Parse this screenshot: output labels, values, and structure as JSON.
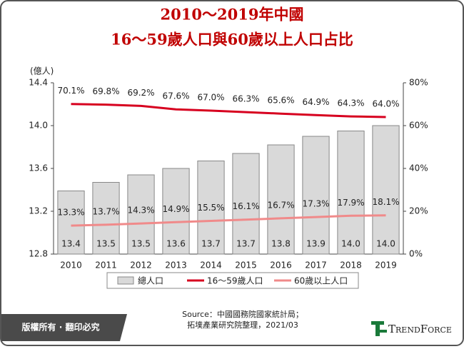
{
  "chart_data": {
    "type": "bar",
    "title": "2010～2019年中國",
    "subtitle": "16～59歲人口與60歲以上人口占比",
    "ylabel": "(億人)",
    "categories": [
      "2010",
      "2011",
      "2012",
      "2013",
      "2014",
      "2015",
      "2016",
      "2017",
      "2018",
      "2019"
    ],
    "ylim": [
      12.8,
      14.4
    ],
    "yticks": [
      12.8,
      13.2,
      13.6,
      {
        "value": 14,
        "label": "14.0"
      },
      14.4
    ],
    "y2lim": [
      0,
      80
    ],
    "y2ticks": [
      {
        "value": 0,
        "label": "0%"
      },
      {
        "value": 20,
        "label": "20%"
      },
      {
        "value": 40,
        "label": "40%"
      },
      {
        "value": 60,
        "label": "60%"
      },
      {
        "value": 80,
        "label": "80%"
      }
    ],
    "series": [
      {
        "name": "總人口",
        "type": "bar",
        "color": "#d9d9d9",
        "values": [
          13.39,
          13.47,
          13.54,
          13.6,
          13.67,
          13.74,
          13.82,
          13.9,
          13.95,
          14.0
        ],
        "value_labels": [
          "13.4",
          "13.5",
          "13.5",
          "13.6",
          "13.7",
          "13.7",
          "13.8",
          "13.9",
          "14.0",
          "14.0"
        ]
      },
      {
        "name": "16～59歲人口",
        "type": "line",
        "axis": "y2",
        "color": "#d7001f",
        "values": [
          70.1,
          69.8,
          69.2,
          67.6,
          67.0,
          66.3,
          65.6,
          64.9,
          64.3,
          64.0
        ],
        "value_labels": [
          "70.1%",
          "69.8%",
          "69.2%",
          "67.6%",
          "67.0%",
          "66.3%",
          "65.6%",
          "64.9%",
          "64.3%",
          "64.0%"
        ]
      },
      {
        "name": "60歲以上人口",
        "type": "line",
        "axis": "y2",
        "color": "#f08a8a",
        "values": [
          13.3,
          13.7,
          14.3,
          14.9,
          15.5,
          16.1,
          16.7,
          17.3,
          17.9,
          18.1
        ],
        "value_labels": [
          "13.3%",
          "13.7%",
          "14.3%",
          "14.9%",
          "15.5%",
          "16.1%",
          "16.7%",
          "17.3%",
          "17.9%",
          "18.1%"
        ]
      }
    ]
  },
  "footer": {
    "copyright": "版權所有 · 翻印必究",
    "source": [
      "Source：中國國務院國家統計局；",
      "拓墣產業研究院整理，2021/03"
    ],
    "logo": "TrendForce"
  }
}
